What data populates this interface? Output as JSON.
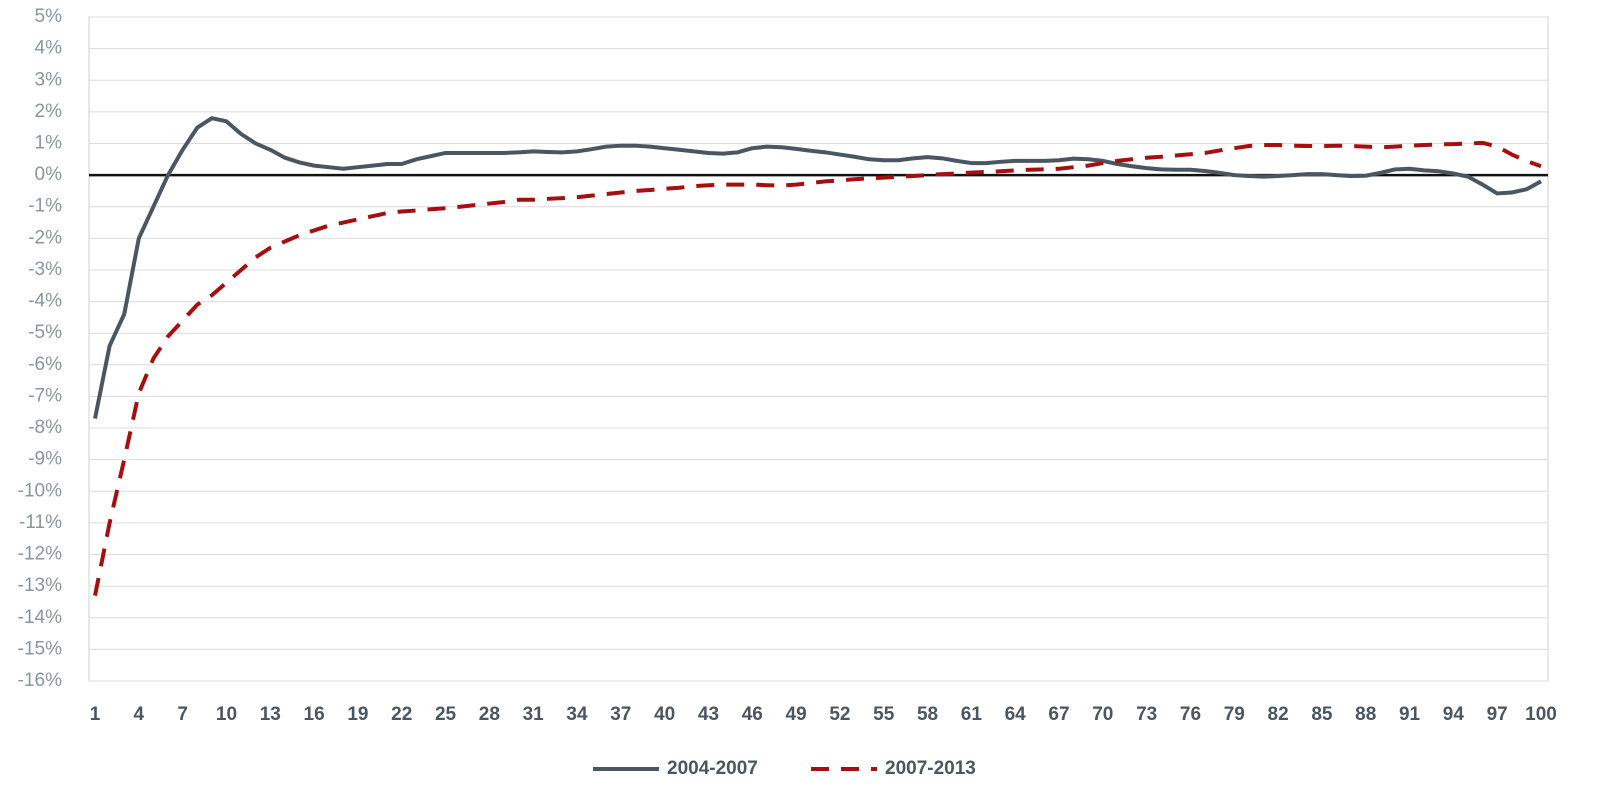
{
  "chart_data": {
    "type": "line",
    "x": [
      1,
      2,
      3,
      4,
      5,
      6,
      7,
      8,
      9,
      10,
      11,
      12,
      13,
      14,
      15,
      16,
      17,
      18,
      19,
      20,
      21,
      22,
      23,
      24,
      25,
      26,
      27,
      28,
      29,
      30,
      31,
      32,
      33,
      34,
      35,
      36,
      37,
      38,
      39,
      40,
      41,
      42,
      43,
      44,
      45,
      46,
      47,
      48,
      49,
      50,
      51,
      52,
      53,
      54,
      55,
      56,
      57,
      58,
      59,
      60,
      61,
      62,
      63,
      64,
      65,
      66,
      67,
      68,
      69,
      70,
      71,
      72,
      73,
      74,
      75,
      76,
      77,
      78,
      79,
      80,
      81,
      82,
      83,
      84,
      85,
      86,
      87,
      88,
      89,
      90,
      91,
      92,
      93,
      94,
      95,
      96,
      97,
      98,
      99,
      100
    ],
    "series": [
      {
        "name": "2004-2007",
        "color": "#4b5661",
        "dash": false,
        "values": [
          -7.7,
          -5.4,
          -4.4,
          -2.0,
          -1.0,
          0.0,
          0.8,
          1.5,
          1.8,
          1.7,
          1.3,
          1.0,
          0.8,
          0.55,
          0.4,
          0.3,
          0.25,
          0.2,
          0.25,
          0.3,
          0.35,
          0.35,
          0.5,
          0.6,
          0.7,
          0.7,
          0.7,
          0.7,
          0.7,
          0.72,
          0.75,
          0.73,
          0.72,
          0.75,
          0.82,
          0.9,
          0.93,
          0.93,
          0.9,
          0.85,
          0.8,
          0.75,
          0.7,
          0.68,
          0.72,
          0.85,
          0.9,
          0.88,
          0.83,
          0.77,
          0.72,
          0.65,
          0.58,
          0.5,
          0.47,
          0.47,
          0.53,
          0.57,
          0.53,
          0.45,
          0.38,
          0.38,
          0.42,
          0.45,
          0.45,
          0.45,
          0.47,
          0.52,
          0.5,
          0.45,
          0.35,
          0.28,
          0.22,
          0.18,
          0.17,
          0.17,
          0.13,
          0.07,
          0.0,
          -0.03,
          -0.05,
          -0.03,
          0.0,
          0.03,
          0.03,
          0.0,
          -0.03,
          -0.02,
          0.07,
          0.18,
          0.2,
          0.15,
          0.12,
          0.05,
          -0.05,
          -0.3,
          -0.58,
          -0.55,
          -0.45,
          -0.2
        ]
      },
      {
        "name": "2007-2013",
        "color": "#a50f0f",
        "dash": true,
        "values": [
          -13.3,
          -11.0,
          -9.0,
          -6.9,
          -5.8,
          -5.1,
          -4.6,
          -4.1,
          -3.8,
          -3.4,
          -3.0,
          -2.6,
          -2.3,
          -2.1,
          -1.9,
          -1.75,
          -1.6,
          -1.5,
          -1.4,
          -1.3,
          -1.2,
          -1.15,
          -1.12,
          -1.08,
          -1.05,
          -1.0,
          -0.95,
          -0.9,
          -0.85,
          -0.78,
          -0.78,
          -0.75,
          -0.73,
          -0.7,
          -0.65,
          -0.6,
          -0.55,
          -0.5,
          -0.47,
          -0.43,
          -0.4,
          -0.35,
          -0.32,
          -0.3,
          -0.3,
          -0.3,
          -0.32,
          -0.33,
          -0.3,
          -0.25,
          -0.2,
          -0.17,
          -0.13,
          -0.1,
          -0.08,
          -0.05,
          -0.03,
          0.0,
          0.03,
          0.05,
          0.08,
          0.1,
          0.12,
          0.15,
          0.17,
          0.18,
          0.2,
          0.25,
          0.3,
          0.38,
          0.45,
          0.5,
          0.55,
          0.58,
          0.62,
          0.66,
          0.7,
          0.78,
          0.85,
          0.92,
          0.95,
          0.95,
          0.93,
          0.92,
          0.92,
          0.93,
          0.92,
          0.9,
          0.88,
          0.9,
          0.93,
          0.95,
          0.97,
          0.98,
          1.0,
          1.02,
          0.9,
          0.65,
          0.45,
          0.28
        ]
      }
    ],
    "xlim": [
      1,
      100
    ],
    "xticks": [
      1,
      4,
      7,
      10,
      13,
      16,
      19,
      22,
      25,
      28,
      31,
      34,
      37,
      40,
      43,
      46,
      49,
      52,
      55,
      58,
      61,
      64,
      67,
      70,
      73,
      76,
      79,
      82,
      85,
      88,
      91,
      94,
      97,
      100
    ],
    "ylim": [
      -16,
      5
    ],
    "yticks": [
      {
        "value": 5,
        "label": "5%"
      },
      {
        "value": 4,
        "label": "4%"
      },
      {
        "value": 3,
        "label": "3%"
      },
      {
        "value": 2,
        "label": "2%"
      },
      {
        "value": 1,
        "label": "1%"
      },
      {
        "value": 0,
        "label": "0%"
      },
      {
        "value": -1,
        "label": "-1%"
      },
      {
        "value": -2,
        "label": "-2%"
      },
      {
        "value": -3,
        "label": "-3%"
      },
      {
        "value": -4,
        "label": "-4%"
      },
      {
        "value": -5,
        "label": "-5%"
      },
      {
        "value": -6,
        "label": "-6%"
      },
      {
        "value": -7,
        "label": "-7%"
      },
      {
        "value": -8,
        "label": "-8%"
      },
      {
        "value": -9,
        "label": "-9%"
      },
      {
        "value": -10,
        "label": "-10%"
      },
      {
        "value": -11,
        "label": "-11%"
      },
      {
        "value": -12,
        "label": "-12%"
      },
      {
        "value": -13,
        "label": "-13%"
      },
      {
        "value": -14,
        "label": "-14%"
      },
      {
        "value": -15,
        "label": "-15%"
      },
      {
        "value": -16,
        "label": "-16%"
      }
    ],
    "grid": true,
    "legend": "bottom"
  }
}
